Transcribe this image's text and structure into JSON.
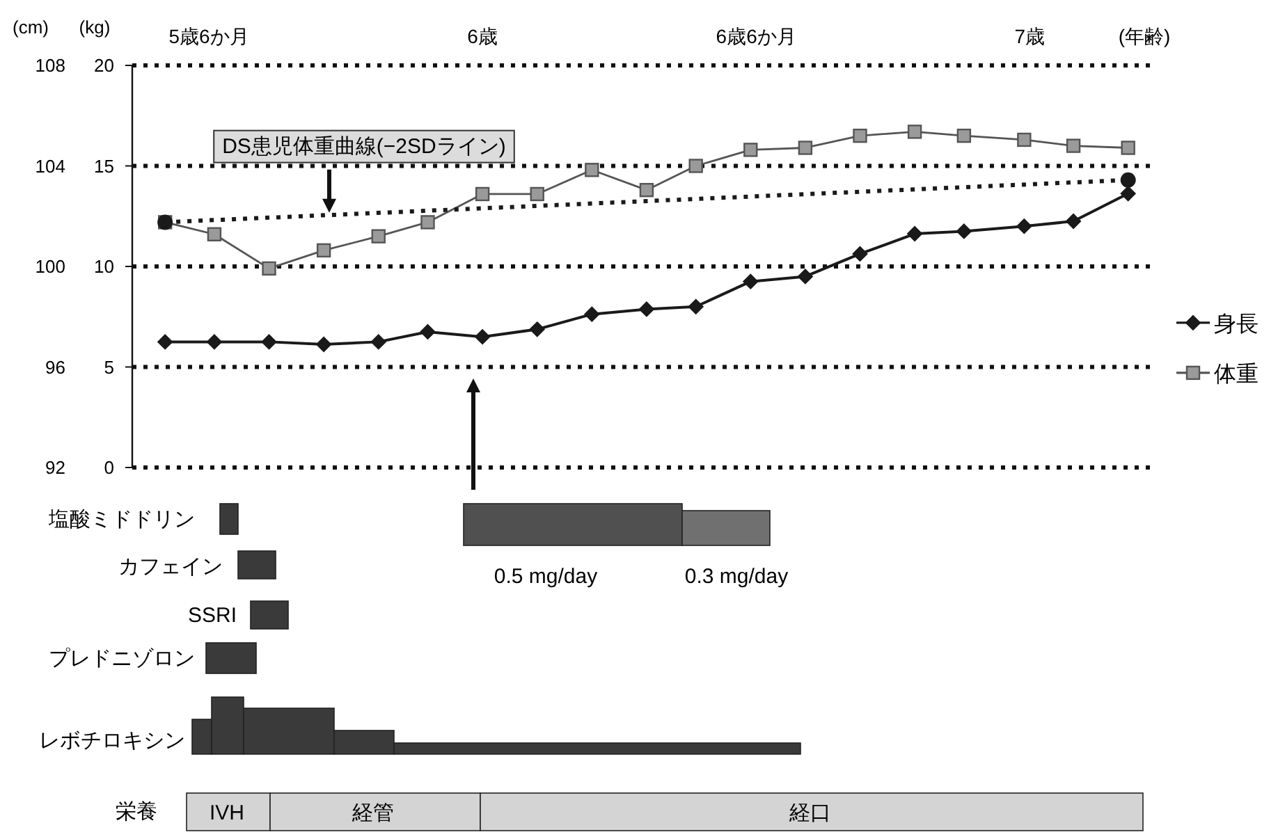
{
  "chart_data": [
    {
      "type": "line",
      "xlabel": "(年齢)",
      "ylabel": "(kg)",
      "y2label": "(cm)",
      "xlim": [
        5.36,
        7.23
      ],
      "xticks": [
        {
          "value": 5.5,
          "label": "5歳6か月"
        },
        {
          "value": 6,
          "label": "6歳"
        },
        {
          "value": 6.5,
          "label": "6歳6か月"
        },
        {
          "value": 7,
          "label": "7歳"
        }
      ],
      "ylim": [
        0,
        20
      ],
      "yticks": [
        0,
        5,
        10,
        15,
        20
      ],
      "y2lim": [
        92,
        108
      ],
      "y2ticks": [
        92,
        96,
        100,
        104,
        108
      ],
      "grid": "y",
      "legend": "right",
      "series": [
        {
          "name": "身長",
          "color": "#1a1a1a",
          "axis": "y2",
          "marker": "diamond",
          "line_style": "solid",
          "x": [
            5.42,
            5.51,
            5.61,
            5.71,
            5.81,
            5.9,
            6.0,
            6.1,
            6.2,
            6.3,
            6.39,
            6.49,
            6.59,
            6.69,
            6.79,
            6.88,
            6.99,
            7.08,
            7.18
          ],
          "values": [
            97.0,
            97.0,
            97.0,
            96.9,
            97.0,
            97.4,
            97.2,
            97.5,
            98.1,
            98.3,
            98.4,
            99.4,
            99.6,
            100.5,
            101.3,
            101.4,
            101.6,
            101.8,
            102.9
          ]
        },
        {
          "name": "体重",
          "color": "#555555",
          "marker": "square",
          "line_style": "solid",
          "x": [
            5.42,
            5.51,
            5.61,
            5.71,
            5.81,
            5.9,
            6.0,
            6.1,
            6.2,
            6.3,
            6.39,
            6.49,
            6.59,
            6.69,
            6.79,
            6.88,
            6.99,
            7.08,
            7.18
          ],
          "values": [
            12.2,
            11.6,
            9.9,
            10.8,
            11.5,
            12.2,
            13.6,
            13.6,
            14.8,
            13.8,
            15.0,
            15.8,
            15.9,
            16.5,
            16.7,
            16.5,
            16.3,
            16.0,
            15.9
          ]
        },
        {
          "color": "#1a1a1a",
          "marker": "circle",
          "line_style": "dotted",
          "x": [
            5.42,
            7.18
          ],
          "values": [
            12.2,
            14.3
          ]
        }
      ],
      "annotations": [
        {
          "text": "DS患児体重曲線(−2SDライン)",
          "x": 5.72,
          "y": 12.4
        }
      ]
    },
    {
      "type": "other",
      "annotations": [
        "塩酸ミドドリン",
        "カフェイン",
        "SSRI",
        "プレドニゾロン",
        "0.5 mg/day",
        "0.3 mg/day",
        "レボチロキシン",
        "栄養",
        "IVH",
        "経管",
        "経口"
      ]
    }
  ]
}
